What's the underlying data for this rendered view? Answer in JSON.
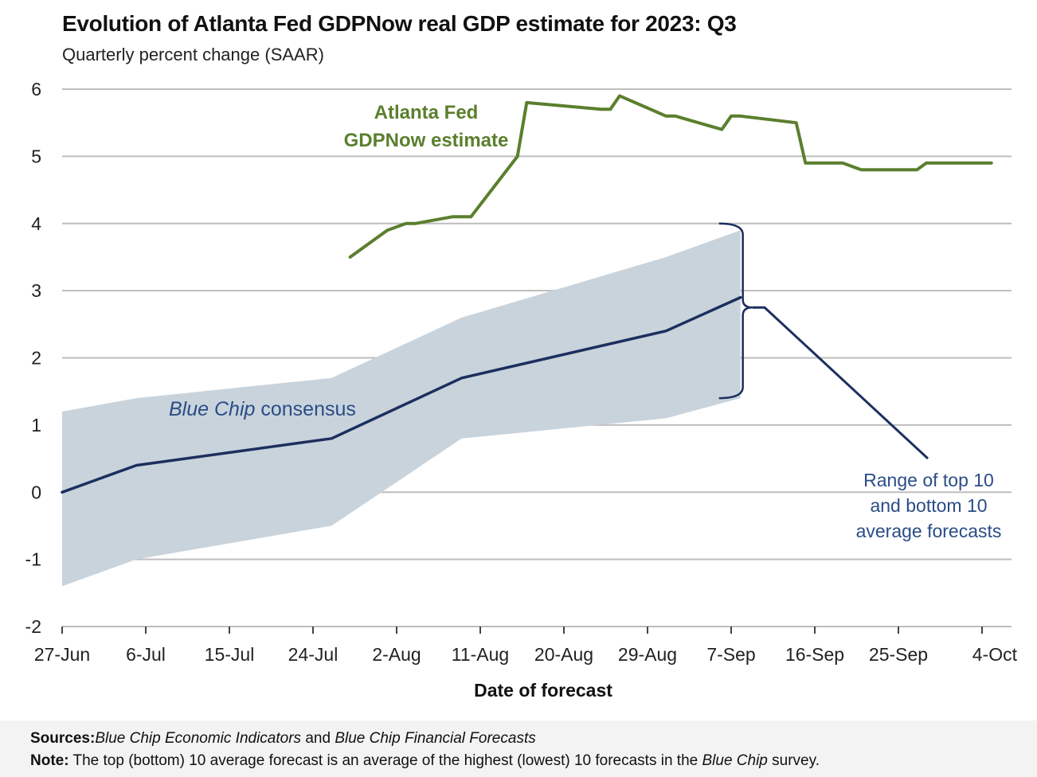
{
  "chart_data": {
    "type": "line",
    "title": "Evolution of Atlanta Fed GDPNow real GDP estimate for 2023: Q3",
    "subtitle": "Quarterly percent change (SAAR)",
    "xlabel": "Date of forecast",
    "ylabel": "",
    "ylim": [
      -2,
      6
    ],
    "yticks": [
      "6",
      "5",
      "4",
      "3",
      "2",
      "1",
      "0",
      "-1",
      "-2"
    ],
    "xticks": [
      "27-Jun",
      "6-Jul",
      "15-Jul",
      "24-Jul",
      "2-Aug",
      "11-Aug",
      "20-Aug",
      "29-Aug",
      "7-Sep",
      "16-Sep",
      "25-Sep",
      "4-Oct"
    ],
    "grid": "horizontal",
    "series": [
      {
        "name": "Atlanta Fed GDPNow estimate",
        "color": "#5b7f2d",
        "points": [
          [
            "2023-07-28",
            3.5
          ],
          [
            "2023-08-01",
            3.9
          ],
          [
            "2023-08-03",
            4.0
          ],
          [
            "2023-08-04",
            4.0
          ],
          [
            "2023-08-08",
            4.1
          ],
          [
            "2023-08-10",
            4.1
          ],
          [
            "2023-08-15",
            5.0
          ],
          [
            "2023-08-16",
            5.8
          ],
          [
            "2023-08-24",
            5.7
          ],
          [
            "2023-08-25",
            5.7
          ],
          [
            "2023-08-26",
            5.9
          ],
          [
            "2023-08-31",
            5.6
          ],
          [
            "2023-09-01",
            5.6
          ],
          [
            "2023-09-06",
            5.4
          ],
          [
            "2023-09-07",
            5.6
          ],
          [
            "2023-09-08",
            5.6
          ],
          [
            "2023-09-14",
            5.5
          ],
          [
            "2023-09-15",
            4.9
          ],
          [
            "2023-09-19",
            4.9
          ],
          [
            "2023-09-21",
            4.8
          ],
          [
            "2023-09-27",
            4.8
          ],
          [
            "2023-09-28",
            4.9
          ],
          [
            "2023-10-05",
            4.9
          ]
        ]
      },
      {
        "name": "Blue Chip consensus",
        "color": "#1c2f5e",
        "points": [
          [
            "2023-06-27",
            0.0
          ],
          [
            "2023-07-05",
            0.4
          ],
          [
            "2023-07-26",
            0.8
          ],
          [
            "2023-08-09",
            1.7
          ],
          [
            "2023-08-31",
            2.4
          ],
          [
            "2023-09-08",
            2.9
          ]
        ]
      }
    ],
    "band": {
      "name": "Range of top 10 and bottom 10 average forecasts",
      "color": "#c9d3dc",
      "points": [
        [
          "2023-06-27",
          1.2,
          -1.4
        ],
        [
          "2023-07-05",
          1.4,
          -1.0
        ],
        [
          "2023-07-26",
          1.7,
          -0.5
        ],
        [
          "2023-08-09",
          2.6,
          0.8
        ],
        [
          "2023-08-31",
          3.5,
          1.1
        ],
        [
          "2023-09-08",
          3.9,
          1.4
        ]
      ]
    },
    "annotations": {
      "gdpnow_label": [
        "Atlanta Fed",
        "GDPNow estimate"
      ],
      "bluechip_label_italic": "Blue Chip",
      "bluechip_label_rest": " consensus",
      "range_label": [
        "Range of top 10",
        "and bottom 10",
        "average forecasts"
      ]
    },
    "colors": {
      "gdpnow": "#5b7f2d",
      "bluechip": "#1c2f5e",
      "band": "#c9d3dc",
      "grid": "#bdbdbd",
      "range_label": "#2a4d86"
    }
  },
  "footer": {
    "sources_label": "Sources:",
    "sources_part1": "Blue Chip Economic Indicators",
    "sources_and": " and ",
    "sources_part2": "Blue Chip Financial Forecasts",
    "note_label": "Note:",
    "note_text": " The top (bottom) 10 average forecast is an average of the highest (lowest) 10 forecasts in the ",
    "note_italic": "Blue Chip",
    "note_end": " survey."
  }
}
